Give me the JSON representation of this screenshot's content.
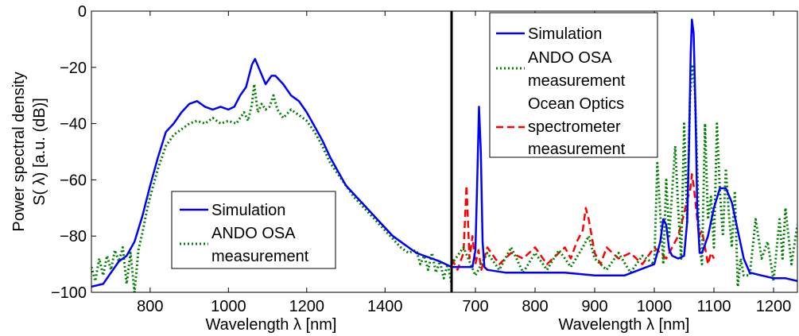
{
  "colors": {
    "simulation": "#0000ff",
    "ando": "#008000",
    "ocean": "#ff0000",
    "axis": "#000000",
    "background": "#ffffff"
  },
  "chart_data": [
    {
      "type": "line",
      "xlabel": "Wavelength λ [nm]",
      "ylabel_line1": "Power spectral density",
      "ylabel_line2": "S( λ) [a.u. (dB)]",
      "xlim": [
        650,
        1570
      ],
      "ylim": [
        -100,
        0
      ],
      "xticks": [
        800,
        1000,
        1200,
        1400
      ],
      "xtick_labels": [
        "800",
        "1000",
        "1200",
        "1400"
      ],
      "yticks": [
        -100,
        -80,
        -60,
        -40,
        -20,
        0
      ],
      "ytick_labels": [
        "−100",
        "−80",
        "−60",
        "−40",
        "−20",
        "0"
      ],
      "grid": false,
      "legend_position": "lower-left",
      "series": [
        {
          "name": "Simulation",
          "style": "solid",
          "x": [
            650,
            680,
            700,
            720,
            740,
            760,
            780,
            800,
            820,
            840,
            860,
            880,
            900,
            920,
            940,
            960,
            980,
            1000,
            1015,
            1030,
            1045,
            1060,
            1068,
            1080,
            1095,
            1110,
            1120,
            1140,
            1160,
            1180,
            1200,
            1220,
            1240,
            1260,
            1280,
            1300,
            1320,
            1340,
            1360,
            1380,
            1400,
            1420,
            1440,
            1460,
            1480,
            1500,
            1520,
            1540,
            1570
          ],
          "y": [
            -98,
            -97,
            -93,
            -89,
            -87,
            -82,
            -73,
            -62,
            -52,
            -43,
            -40,
            -36,
            -33,
            -32,
            -34,
            -35,
            -34,
            -35,
            -34,
            -30,
            -27,
            -19,
            -17,
            -21,
            -26,
            -23,
            -23,
            -26,
            -30,
            -32,
            -36,
            -41,
            -46,
            -52,
            -57,
            -62,
            -65,
            -68,
            -71,
            -74,
            -77,
            -80,
            -82,
            -84,
            -86,
            -87,
            -88,
            -89,
            -91
          ]
        },
        {
          "name": "ANDO OSA measurement",
          "style": "dotted",
          "x": [
            650,
            660,
            670,
            680,
            690,
            700,
            710,
            720,
            730,
            740,
            750,
            760,
            770,
            780,
            790,
            800,
            820,
            840,
            860,
            880,
            900,
            920,
            940,
            960,
            980,
            1000,
            1020,
            1040,
            1050,
            1060,
            1066,
            1075,
            1085,
            1095,
            1105,
            1115,
            1125,
            1140,
            1160,
            1180,
            1200,
            1220,
            1240,
            1260,
            1280,
            1300,
            1320,
            1340,
            1360,
            1380,
            1400,
            1420,
            1440,
            1460,
            1480,
            1490,
            1500,
            1510,
            1520,
            1530,
            1540,
            1550,
            1560,
            1570
          ],
          "y": [
            -91,
            -96,
            -88,
            -94,
            -87,
            -92,
            -85,
            -89,
            -84,
            -97,
            -86,
            -100,
            -85,
            -79,
            -72,
            -66,
            -56,
            -48,
            -44,
            -42,
            -40,
            -39,
            -40,
            -38,
            -40,
            -39,
            -40,
            -36,
            -39,
            -33,
            -26,
            -36,
            -33,
            -35,
            -34,
            -30,
            -35,
            -38,
            -35,
            -37,
            -39,
            -43,
            -48,
            -54,
            -58,
            -62,
            -66,
            -69,
            -72,
            -75,
            -78,
            -81,
            -84,
            -86,
            -85,
            -90,
            -87,
            -92,
            -86,
            -93,
            -89,
            -95,
            -90,
            -97
          ]
        }
      ],
      "legend": [
        "Simulation",
        "ANDO OSA",
        "measurement"
      ]
    },
    {
      "type": "line",
      "xlabel": "Wavelength λ [nm]",
      "xlim": [
        660,
        1240
      ],
      "ylim": [
        -100,
        0
      ],
      "xticks": [
        700,
        800,
        900,
        1000,
        1100,
        1200
      ],
      "xtick_labels": [
        "700",
        "800",
        "900",
        "1000",
        "1100",
        "1200"
      ],
      "grid": false,
      "legend_position": "top-right",
      "series": [
        {
          "name": "Simulation",
          "style": "solid",
          "x": [
            660,
            680,
            695,
            700,
            703,
            706,
            709,
            712,
            715,
            720,
            750,
            800,
            850,
            900,
            950,
            1000,
            1010,
            1015,
            1020,
            1025,
            1030,
            1040,
            1050,
            1055,
            1058,
            1061,
            1063,
            1066,
            1069,
            1072,
            1076,
            1080,
            1090,
            1100,
            1110,
            1120,
            1130,
            1140,
            1150,
            1160,
            1180,
            1200,
            1220,
            1240
          ],
          "y": [
            -91,
            -91,
            -91,
            -85,
            -60,
            -34,
            -50,
            -82,
            -91,
            -92,
            -93,
            -93,
            -93,
            -94,
            -94,
            -90,
            -82,
            -74,
            -76,
            -85,
            -87,
            -88,
            -87,
            -75,
            -50,
            -15,
            -3,
            -8,
            -35,
            -70,
            -86,
            -86,
            -80,
            -70,
            -63,
            -63,
            -68,
            -78,
            -88,
            -93,
            -94,
            -95,
            -95,
            -96
          ]
        },
        {
          "name": "ANDO OSA measurement",
          "style": "dotted",
          "x": [
            660,
            680,
            700,
            720,
            740,
            760,
            780,
            800,
            820,
            840,
            860,
            880,
            890,
            900,
            920,
            940,
            960,
            980,
            1000,
            1005,
            1010,
            1015,
            1020,
            1025,
            1030,
            1035,
            1040,
            1045,
            1050,
            1055,
            1060,
            1064,
            1068,
            1072,
            1076,
            1080,
            1085,
            1090,
            1095,
            1100,
            1105,
            1110,
            1115,
            1120,
            1125,
            1130,
            1135,
            1140,
            1145,
            1150,
            1160,
            1170,
            1180,
            1190,
            1200,
            1210,
            1215,
            1220,
            1230,
            1240
          ],
          "y": [
            -90,
            -84,
            -94,
            -86,
            -92,
            -84,
            -93,
            -86,
            -92,
            -85,
            -91,
            -84,
            -80,
            -88,
            -92,
            -86,
            -93,
            -87,
            -90,
            -54,
            -72,
            -90,
            -60,
            -80,
            -64,
            -48,
            -70,
            -88,
            -40,
            -75,
            -30,
            -19,
            -28,
            -56,
            -84,
            -90,
            -40,
            -74,
            -66,
            -84,
            -40,
            -64,
            -80,
            -56,
            -72,
            -84,
            -64,
            -98,
            -88,
            -94,
            -94,
            -74,
            -88,
            -82,
            -96,
            -74,
            -88,
            -70,
            -90,
            -76
          ]
        },
        {
          "name": "Ocean Optics spectrometer measurement",
          "style": "dashed",
          "x": [
            660,
            670,
            680,
            685,
            690,
            695,
            700,
            705,
            710,
            720,
            740,
            760,
            780,
            800,
            820,
            840,
            850,
            860,
            870,
            880,
            885,
            890,
            900,
            910,
            920,
            940,
            960,
            980,
            1000,
            1010,
            1020,
            1030,
            1040,
            1050,
            1055,
            1060,
            1063,
            1066,
            1069,
            1072,
            1075,
            1080,
            1085,
            1090,
            1095,
            1100
          ],
          "y": [
            -88,
            -92,
            -86,
            -62,
            -88,
            -80,
            -90,
            -85,
            -92,
            -84,
            -90,
            -86,
            -88,
            -84,
            -90,
            -86,
            -84,
            -88,
            -82,
            -78,
            -70,
            -74,
            -86,
            -90,
            -84,
            -88,
            -86,
            -90,
            -84,
            -86,
            -88,
            -84,
            -80,
            -72,
            -67,
            -64,
            -58,
            -62,
            -68,
            -74,
            -80,
            -78,
            -84,
            -90,
            -86,
            -88
          ]
        }
      ],
      "legend": [
        "Simulation",
        "ANDO OSA",
        "measurement",
        "Ocean Optics",
        "spectrometer",
        "measurement"
      ]
    }
  ]
}
